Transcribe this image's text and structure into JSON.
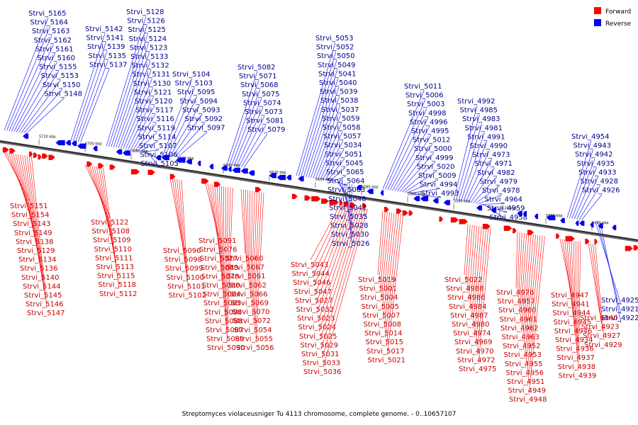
{
  "caption": "Streptomyces violaceusniger Tu 4113 chromosome, complete genome. - 0..10657107",
  "legend": [
    {
      "label": "Forward",
      "color": "#ff0000"
    },
    {
      "label": "Reverse",
      "color": "#0000ff"
    }
  ],
  "ticks": [
    "5720 kbp",
    "5700 kbp",
    "5680 kbp",
    "5660 kbp",
    "5640 kbp",
    "5620 kbp",
    "5600 kbp",
    "5580 kbp",
    "5560 kbp",
    "5540 kbp",
    "5520 kbp",
    "5500 kbp",
    "5480 kbp"
  ],
  "reverse_labels": [
    "Strvi_5165",
    "Strvi_5164",
    "Strvi_5163",
    "Strvi_5162",
    "Strvi_5161",
    "Strvi_5160",
    "Strvi_5155",
    "Strvi_5153",
    "Strvi_5150",
    "Strvi_5148",
    "Strvi_5142",
    "Strvi_5141",
    "Strvi_5139",
    "Strvi_5135",
    "Strvi_5137",
    "Strvi_5128",
    "Strvi_5126",
    "Strvi_5125",
    "Strvi_5124",
    "Strvi_5123",
    "Strvi_5133",
    "Strvi_5132",
    "Strvi_5131",
    "Strvi_5130",
    "Strvi_5121",
    "Strvi_5120",
    "Strvi_5117",
    "Strvi_5116",
    "Strvi_5119",
    "Strvi_5114",
    "Strvi_5107",
    "Strvi_5106",
    "Strvi_5105",
    "Strvi_5104",
    "Strvi_5103",
    "Strvi_5095",
    "Strvi_5094",
    "Strvi_5093",
    "Strvi_5092",
    "Strvi_5097",
    "Strvi_5082",
    "Strvi_5071",
    "Strvi_5068",
    "Strvi_5075",
    "Strvi_5074",
    "Strvi_5073",
    "Strvi_5081",
    "Strvi_5079",
    "Strvi_5053",
    "Strvi_5052",
    "Strvi_5050",
    "Strvi_5049",
    "Strvi_5041",
    "Strvi_5040",
    "Strvi_5039",
    "Strvi_5038",
    "Strvi_5037",
    "Strvi_5059",
    "Strvi_5058",
    "Strvi_5057",
    "Strvi_5034",
    "Strvi_5051",
    "Strvi_5045",
    "Strvi_5065",
    "Strvi_5064",
    "Strvi_5063",
    "Strvi_5048",
    "Strvi_5042",
    "Strvi_5035",
    "Strvi_5028",
    "Strvi_5030",
    "Strvi_5026",
    "Strvi_5011",
    "Strvi_5006",
    "Strvi_5003",
    "Strvi_4998",
    "Strvi_4996",
    "Strvi_4995",
    "Strvi_5012",
    "Strvi_5000",
    "Strvi_4999",
    "Strvi_5020",
    "Strvi_5009",
    "Strvi_4994",
    "Strvi_4993",
    "Strvi_4992",
    "Strvi_4985",
    "Strvi_4983",
    "Strvi_4981",
    "Strvi_4991",
    "Strvi_4990",
    "Strvi_4973",
    "Strvi_4971",
    "Strvi_4982",
    "Strvi_4979",
    "Strvi_4978",
    "Strvi_4964",
    "Strvi_4959",
    "Strvi_4958",
    "Strvi_4954",
    "Strvi_4943",
    "Strvi_4942",
    "Strvi_4935",
    "Strvi_4933",
    "Strvi_4928",
    "Strvi_4926",
    "Strvi_4925",
    "Strvi_4921",
    "Strvi_4922",
    "Strvi_4924"
  ],
  "forward_labels": [
    "Strvi_5151",
    "Strvi_5154",
    "Strvi_5143",
    "Strvi_5149",
    "Strvi_5138",
    "Strvi_5129",
    "Strvi_5134",
    "Strvi_5136",
    "Strvi_5140",
    "Strvi_5144",
    "Strvi_5145",
    "Strvi_5146",
    "Strvi_5147",
    "Strvi_5122",
    "Strvi_5108",
    "Strvi_5109",
    "Strvi_5110",
    "Strvi_5111",
    "Strvi_5113",
    "Strvi_5115",
    "Strvi_5118",
    "Strvi_5112",
    "Strvi_5096",
    "Strvi_5098",
    "Strvi_5099",
    "Strvi_5100",
    "Strvi_5101",
    "Strvi_5102",
    "Strvi_5091",
    "Strvi_5076",
    "Strvi_5077",
    "Strvi_5083",
    "Strvi_5078",
    "Strvi_5080",
    "Strvi_5084",
    "Strvi_5085",
    "Strvi_5086",
    "Strvi_5088",
    "Strvi_5087",
    "Strvi_5089",
    "Strvi_5090",
    "Strvi_5060",
    "Strvi_5067",
    "Strvi_5061",
    "Strvi_5062",
    "Strvi_5066",
    "Strvi_5069",
    "Strvi_5070",
    "Strvi_5072",
    "Strvi_5054",
    "Strvi_5055",
    "Strvi_5056",
    "Strvi_5043",
    "Strvi_5044",
    "Strvi_5046",
    "Strvi_5047",
    "Strvi_5027",
    "Strvi_5032",
    "Strvi_5023",
    "Strvi_5024",
    "Strvi_5025",
    "Strvi_5029",
    "Strvi_5031",
    "Strvi_5033",
    "Strvi_5036",
    "Strvi_5019",
    "Strvi_5001",
    "Strvi_5004",
    "Strvi_5005",
    "Strvi_5007",
    "Strvi_5008",
    "Strvi_5014",
    "Strvi_5015",
    "Strvi_5017",
    "Strvi_5021",
    "Strvi_5022",
    "Strvi_4988",
    "Strvi_4986",
    "Strvi_4984",
    "Strvi_4987",
    "Strvi_4980",
    "Strvi_4974",
    "Strvi_4969",
    "Strvi_4970",
    "Strvi_4972",
    "Strvi_4975",
    "Strvi_4976",
    "Strvi_4957",
    "Strvi_4960",
    "Strvi_4961",
    "Strvi_4962",
    "Strvi_4963",
    "Strvi_4952",
    "Strvi_4953",
    "Strvi_4955",
    "Strvi_4956",
    "Strvi_4951",
    "Strvi_4949",
    "Strvi_4948",
    "Strvi_4947",
    "Strvi_4941",
    "Strvi_4944",
    "Strvi_4945",
    "Strvi_4946",
    "Strvi_4934",
    "Strvi_4936",
    "Strvi_4937",
    "Strvi_4938",
    "Strvi_4939",
    "Strvi_4940",
    "Strvi_4923",
    "Strvi_4927",
    "Strvi_4929",
    "Strvi_4930"
  ]
}
